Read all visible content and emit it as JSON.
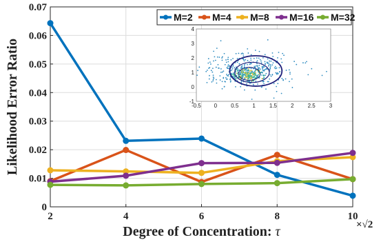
{
  "chart_data": {
    "type": "line",
    "xlabel_main": "Degree of Concentration: ",
    "xlabel_symbol": "τ",
    "ylabel": "Likelihood Error Ratio",
    "x_multiplier": "×√2",
    "x": [
      2,
      4,
      6,
      8,
      10
    ],
    "xlim": [
      2,
      10
    ],
    "ylim": [
      0,
      0.07
    ],
    "x_ticks": [
      "2",
      "4",
      "6",
      "8",
      "10"
    ],
    "y_ticks": [
      "0",
      "0.01",
      "0.02",
      "0.03",
      "0.04",
      "0.05",
      "0.06",
      "0.07"
    ],
    "grid": true,
    "legend_position": "top-right",
    "series": [
      {
        "name": "M=2",
        "color": "#0072BD",
        "values": [
          0.0643,
          0.0231,
          0.0239,
          0.0112,
          0.0039
        ]
      },
      {
        "name": "M=4",
        "color": "#D95319",
        "values": [
          0.009,
          0.0199,
          0.0087,
          0.0182,
          0.0097
        ]
      },
      {
        "name": "M=8",
        "color": "#EDB120",
        "values": [
          0.0128,
          0.0124,
          0.0119,
          0.016,
          0.0174
        ]
      },
      {
        "name": "M=16",
        "color": "#7E2F8E",
        "values": [
          0.0088,
          0.0109,
          0.0153,
          0.0154,
          0.0189
        ]
      },
      {
        "name": "M=32",
        "color": "#77AC30",
        "values": [
          0.0077,
          0.0075,
          0.008,
          0.0083,
          0.0097
        ]
      }
    ],
    "inset": {
      "type": "scatter",
      "xlim": [
        -0.5,
        3
      ],
      "ylim": [
        -1,
        4
      ],
      "x_ticks": [
        "-0.5",
        "0",
        "0.5",
        "1",
        "1.5",
        "2",
        "2.5",
        "3"
      ],
      "y_ticks": [
        "-1",
        "0",
        "1",
        "2",
        "3",
        "4"
      ],
      "point_color": "#2E8BC0",
      "contour_color": "#1F1F7A"
    }
  }
}
